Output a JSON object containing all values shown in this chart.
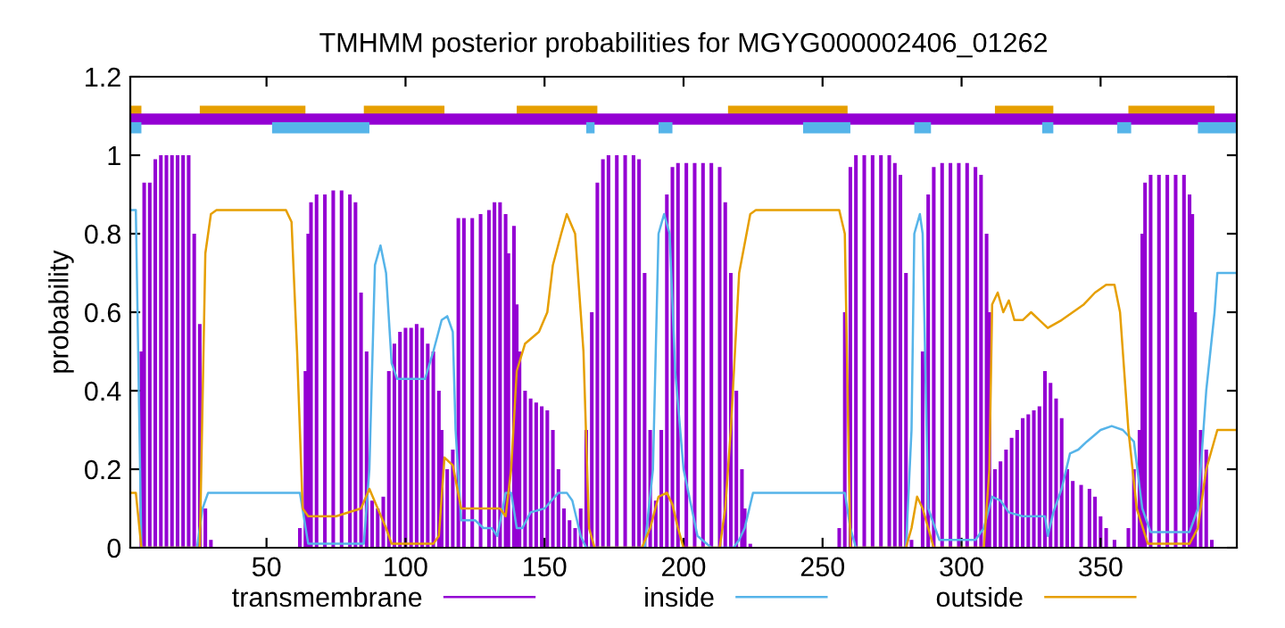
{
  "chart_data": {
    "type": "line",
    "title": "TMHMM posterior probabilities for MGYG000002406_01262",
    "ylabel": "probability",
    "xlim": [
      1,
      399
    ],
    "xticks": [
      50,
      100,
      150,
      200,
      250,
      300,
      350
    ],
    "ylim": [
      0,
      1.2
    ],
    "yticks": [
      0,
      0.2,
      0.4,
      0.6,
      0.8,
      1,
      1.2
    ],
    "grid": false,
    "legend": "bottom",
    "series": [
      {
        "name": "transmembrane",
        "type": "bar",
        "color": "#9400d3",
        "x": [
          1,
          3,
          5,
          6,
          8,
          10,
          12,
          14,
          16,
          18,
          20,
          22,
          24,
          26,
          28,
          30,
          45,
          62,
          64,
          65,
          66,
          68,
          71,
          74,
          77,
          80,
          82,
          84,
          86,
          88,
          90,
          92,
          94,
          96,
          98,
          100,
          102,
          104,
          106,
          108,
          110,
          112,
          113,
          115,
          117,
          119,
          121,
          124,
          127,
          130,
          132,
          134,
          136,
          137,
          139,
          140,
          141,
          143,
          145,
          147,
          149,
          151,
          153,
          155,
          157,
          159,
          161,
          163,
          165,
          167,
          169,
          171,
          173,
          176,
          179,
          182,
          184,
          186,
          188,
          190,
          192,
          194,
          196,
          198,
          201,
          204,
          207,
          210,
          213,
          215,
          217,
          219,
          221,
          222,
          224,
          240,
          256,
          258,
          260,
          262,
          265,
          268,
          271,
          274,
          276,
          278,
          280,
          282,
          286,
          288,
          290,
          293,
          296,
          299,
          302,
          305,
          307,
          309,
          310,
          312,
          314,
          316,
          318,
          320,
          322,
          324,
          326,
          328,
          330,
          332,
          334,
          336,
          338,
          340,
          343,
          346,
          348,
          350,
          352,
          355,
          358,
          360,
          362,
          364,
          365,
          366,
          368,
          371,
          374,
          377,
          380,
          382,
          383,
          384,
          386,
          388,
          390,
          395
        ],
        "values": [
          0,
          0,
          0.5,
          0.93,
          0.93,
          0.99,
          1.0,
          1.0,
          1.0,
          1.0,
          1.0,
          1.0,
          0.8,
          0.57,
          0.1,
          0.02,
          0,
          0.05,
          0.45,
          0.8,
          0.88,
          0.9,
          0.9,
          0.91,
          0.91,
          0.9,
          0.88,
          0.65,
          0.5,
          0.12,
          0.1,
          0.13,
          0.45,
          0.52,
          0.55,
          0.56,
          0.56,
          0.57,
          0.56,
          0.52,
          0.5,
          0.4,
          0.3,
          0.2,
          0.25,
          0.84,
          0.84,
          0.84,
          0.85,
          0.86,
          0.88,
          0.88,
          0.85,
          0.75,
          0.82,
          0.62,
          0.5,
          0.4,
          0.38,
          0.37,
          0.36,
          0.35,
          0.3,
          0.2,
          0.1,
          0.07,
          0.05,
          0.1,
          0.3,
          0.6,
          0.93,
          0.99,
          1.0,
          1.0,
          1.0,
          1.0,
          0.99,
          0.7,
          0.3,
          0.12,
          0.3,
          0.9,
          0.97,
          0.98,
          0.98,
          0.98,
          0.98,
          0.98,
          0.97,
          0.88,
          0.7,
          0.4,
          0.2,
          0.1,
          0.01,
          0,
          0.05,
          0.6,
          0.97,
          1.0,
          1.0,
          1.0,
          1.0,
          1.0,
          0.98,
          0.95,
          0.7,
          0.02,
          0.5,
          0.9,
          0.97,
          0.98,
          0.98,
          0.98,
          0.98,
          0.97,
          0.95,
          0.8,
          0.6,
          0.2,
          0.22,
          0.25,
          0.28,
          0.3,
          0.33,
          0.34,
          0.35,
          0.36,
          0.45,
          0.42,
          0.38,
          0.33,
          0.2,
          0.17,
          0.16,
          0.15,
          0.13,
          0.08,
          0.05,
          0.02,
          0,
          0.05,
          0.2,
          0.3,
          0.8,
          0.93,
          0.95,
          0.95,
          0.95,
          0.95,
          0.95,
          0.9,
          0.85,
          0.6,
          0.3,
          0.25,
          0.02,
          0
        ]
      },
      {
        "name": "inside",
        "color": "#56b4e9",
        "x": [
          1,
          3,
          5,
          10,
          20,
          25,
          27,
          29,
          45,
          62,
          65,
          75,
          85,
          87,
          89,
          91,
          93,
          95,
          97,
          102,
          107,
          110,
          113,
          115,
          117,
          118,
          120,
          125,
          128,
          131,
          133,
          135,
          136,
          138,
          140,
          142,
          145,
          150,
          155,
          158,
          160,
          163,
          165,
          175,
          186,
          189,
          191,
          193,
          195,
          197,
          200,
          205,
          210,
          218,
          220,
          222,
          225,
          240,
          258,
          260,
          262,
          270,
          280,
          282,
          283,
          285,
          286,
          288,
          292,
          300,
          305,
          308,
          311,
          314,
          317,
          322,
          327,
          330,
          331,
          333,
          336,
          339,
          342,
          345,
          350,
          354,
          358,
          362,
          365,
          368,
          375,
          382,
          385,
          388,
          391,
          392,
          399
        ],
        "values": [
          0.86,
          0.86,
          0,
          0,
          0,
          0,
          0.1,
          0.14,
          0.14,
          0.14,
          0.01,
          0.01,
          0.01,
          0.2,
          0.72,
          0.77,
          0.7,
          0.47,
          0.43,
          0.43,
          0.43,
          0.5,
          0.58,
          0.59,
          0.55,
          0.3,
          0.07,
          0.07,
          0.05,
          0.05,
          0.03,
          0.1,
          0.14,
          0.14,
          0.05,
          0.05,
          0.09,
          0.1,
          0.14,
          0.14,
          0.12,
          0.03,
          0,
          0,
          0,
          0.2,
          0.8,
          0.85,
          0.8,
          0.45,
          0.2,
          0.03,
          0,
          0,
          0.02,
          0.05,
          0.14,
          0.14,
          0.14,
          0.05,
          0,
          0,
          0,
          0.3,
          0.8,
          0.85,
          0.8,
          0.1,
          0.02,
          0.02,
          0.02,
          0.05,
          0.13,
          0.12,
          0.09,
          0.08,
          0.08,
          0.08,
          0.03,
          0.09,
          0.15,
          0.24,
          0.25,
          0.27,
          0.3,
          0.31,
          0.3,
          0.27,
          0.1,
          0.04,
          0.04,
          0.04,
          0.1,
          0.4,
          0.6,
          0.7,
          0.7
        ]
      },
      {
        "name": "outside",
        "color": "#e69f00",
        "x": [
          1,
          3,
          5,
          15,
          26,
          28,
          30,
          32,
          45,
          57,
          59,
          61,
          63,
          65,
          75,
          84,
          87,
          90,
          93,
          95,
          105,
          110,
          112,
          114,
          117,
          120,
          125,
          134,
          136,
          138,
          140,
          143,
          148,
          151,
          153,
          156,
          158,
          161,
          164,
          166,
          168,
          185,
          188,
          191,
          194,
          196,
          198,
          200,
          213,
          215,
          217,
          220,
          224,
          226,
          240,
          256,
          258,
          260,
          270,
          280,
          282,
          284,
          286,
          288,
          290,
          300,
          308,
          310,
          311,
          313,
          315,
          317,
          319,
          322,
          325,
          328,
          331,
          336,
          340,
          344,
          348,
          352,
          355,
          357,
          360,
          363,
          367,
          375,
          382,
          385,
          388,
          390,
          392,
          399
        ],
        "values": [
          0.14,
          0.14,
          0,
          0,
          0,
          0.75,
          0.85,
          0.86,
          0.86,
          0.86,
          0.83,
          0.5,
          0.1,
          0.08,
          0.08,
          0.1,
          0.15,
          0.1,
          0.05,
          0.01,
          0.01,
          0.01,
          0.03,
          0.23,
          0.21,
          0.1,
          0.1,
          0.1,
          0.08,
          0.2,
          0.45,
          0.52,
          0.55,
          0.6,
          0.72,
          0.8,
          0.85,
          0.8,
          0.5,
          0.05,
          0,
          0,
          0.05,
          0.13,
          0.14,
          0.11,
          0.05,
          0,
          0,
          0.1,
          0.3,
          0.7,
          0.85,
          0.86,
          0.86,
          0.86,
          0.8,
          0,
          0,
          0,
          0.05,
          0.13,
          0.1,
          0.05,
          0,
          0,
          0,
          0.2,
          0.62,
          0.65,
          0.6,
          0.63,
          0.58,
          0.58,
          0.6,
          0.58,
          0.56,
          0.58,
          0.6,
          0.62,
          0.65,
          0.67,
          0.67,
          0.6,
          0.3,
          0.1,
          0.01,
          0.01,
          0.01,
          0.05,
          0.2,
          0.25,
          0.3,
          0.3
        ]
      },
      {
        "color": "#e69f00",
        "x": [
          1,
          5,
          15,
          26,
          64,
          75,
          85,
          114,
          127,
          140,
          169,
          192,
          216,
          259,
          285,
          312,
          333,
          346,
          360,
          391
        ],
        "values": [
          1.112,
          1.112,
          null,
          1.112,
          1.112,
          null,
          1.112,
          1.112,
          null,
          1.112,
          1.112,
          null,
          1.112,
          1.112,
          null,
          1.112,
          1.112,
          null,
          1.112,
          1.112
        ]
      },
      {
        "color": "#9400d3",
        "x": [
          1,
          399
        ],
        "values": [
          1.092,
          1.092
        ]
      },
      {
        "color": "#56b4e9",
        "x": [
          1,
          5,
          28,
          52,
          87,
          126,
          165,
          168,
          180,
          191,
          196,
          220,
          243,
          260,
          272,
          283,
          289,
          309,
          329,
          333,
          345,
          356,
          361,
          373,
          385,
          399
        ],
        "values": [
          1.07,
          1.07,
          null,
          1.07,
          1.07,
          null,
          1.07,
          1.07,
          null,
          1.07,
          1.07,
          null,
          1.07,
          1.07,
          null,
          1.07,
          1.07,
          null,
          1.07,
          1.07,
          null,
          1.07,
          1.07,
          null,
          1.07,
          1.07
        ]
      }
    ]
  }
}
